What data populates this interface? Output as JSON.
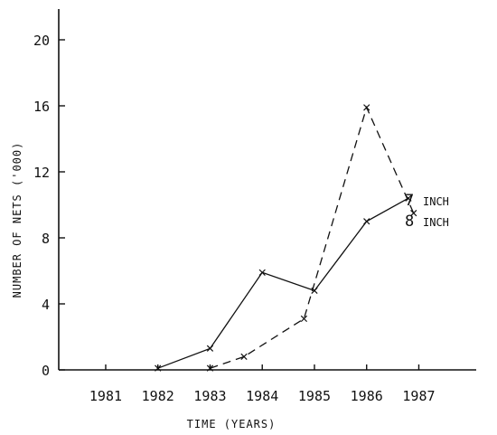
{
  "chart_data": {
    "type": "line",
    "xlabel": "TIME (YEARS)",
    "ylabel": "NUMBER OF NETS ('000)",
    "categories": [
      "1981",
      "1982",
      "1983",
      "1984",
      "1985",
      "1986",
      "1987"
    ],
    "xlim": [
      1980.1,
      1988.1
    ],
    "ylim": [
      0,
      20
    ],
    "yticks": [
      0,
      4,
      8,
      12,
      16,
      20
    ],
    "grid": false,
    "legend": "inline labels at line ends",
    "series": [
      {
        "name": "7 INCH",
        "label_num": "7",
        "label_unit": "INCH",
        "style": "solid",
        "x": [
          1982,
          1983,
          1984,
          1985,
          1986,
          1986.8
        ],
        "y": [
          0.1,
          1.3,
          5.9,
          4.8,
          9.0,
          10.4
        ]
      },
      {
        "name": "8 INCH",
        "label_num": "8",
        "label_unit": "INCH",
        "style": "dashed",
        "x": [
          1983,
          1983.65,
          1984.8,
          1986,
          1986.9
        ],
        "y": [
          0.1,
          0.8,
          3.1,
          15.9,
          9.5
        ]
      }
    ]
  }
}
